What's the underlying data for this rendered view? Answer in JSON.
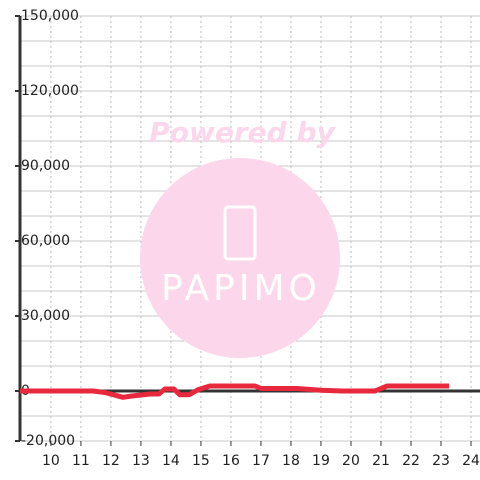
{
  "chart_data": {
    "type": "line",
    "watermark": {
      "text": "Powered by",
      "logo": "PAPIMO"
    },
    "x": [
      8.97,
      11.4,
      11.8,
      12.4,
      12.7,
      13.3,
      13.6,
      13.8,
      14.1,
      14.3,
      14.6,
      14.9,
      15.3,
      16.8,
      17.0,
      18.2,
      19.0,
      19.7,
      20.8,
      21.2,
      23.27
    ],
    "series": [
      {
        "color": "#e8283c",
        "values": [
          0,
          0,
          -600,
          -2500,
          -2000,
          -1200,
          -1200,
          800,
          800,
          -1500,
          -1500,
          500,
          2000,
          2000,
          1000,
          1000,
          300,
          0,
          0,
          2000,
          2000
        ]
      }
    ],
    "xlim": [
      8.97,
      24.3
    ],
    "xticks": [
      10,
      11,
      12,
      13,
      14,
      15,
      16,
      17,
      18,
      19,
      20,
      21,
      22,
      23,
      24
    ],
    "ylim": [
      -20000,
      150000
    ],
    "yticks": [
      {
        "value": -20000,
        "label": "-20,000"
      },
      0,
      {
        "value": 30000,
        "label": "30,000"
      },
      {
        "value": 60000,
        "label": "60,000"
      },
      {
        "value": 90000,
        "label": "90,000"
      },
      {
        "value": 120000,
        "label": "120,000"
      },
      {
        "value": 150000,
        "label": "150,000"
      }
    ],
    "minor_yticks": [
      -10000,
      10000,
      20000,
      40000,
      50000,
      70000,
      80000,
      100000,
      110000,
      130000,
      140000
    ],
    "grid": true
  }
}
